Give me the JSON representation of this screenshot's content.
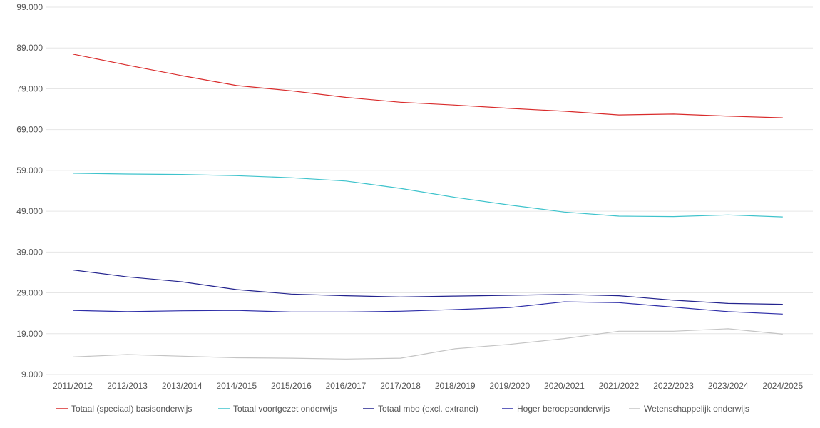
{
  "chart_data": {
    "type": "line",
    "categories": [
      "2011/2012",
      "2012/2013",
      "2013/2014",
      "2014/2015",
      "2015/2016",
      "2016/2017",
      "2017/2018",
      "2018/2019",
      "2019/2020",
      "2020/2021",
      "2021/2022",
      "2022/2023",
      "2023/2024",
      "2024/2025"
    ],
    "y_ticks": [
      9000,
      19000,
      29000,
      39000,
      49000,
      59000,
      69000,
      79000,
      89000,
      99000
    ],
    "y_tick_labels": [
      "9.000",
      "19.000",
      "29.000",
      "39.000",
      "49.000",
      "59.000",
      "69.000",
      "79.000",
      "89.000",
      "99.000"
    ],
    "ylim": [
      9000,
      99000
    ],
    "grid": true,
    "legend_position": "bottom",
    "series": [
      {
        "name": "Totaal (speciaal) basisonderwijs",
        "color": "#d92b2b",
        "values": [
          87500,
          84800,
          82200,
          79800,
          78500,
          76900,
          75700,
          75000,
          74200,
          73500,
          72600,
          72800,
          72300,
          71900
        ]
      },
      {
        "name": "Totaal voortgezet onderwijs",
        "color": "#3ec3cc",
        "values": [
          58300,
          58100,
          58000,
          57700,
          57200,
          56400,
          54600,
          52400,
          50500,
          48800,
          47800,
          47700,
          48100,
          47600
        ]
      },
      {
        "name": "Totaal mbo (excl. extranei)",
        "color": "#23238e",
        "values": [
          34600,
          32900,
          31700,
          29800,
          28700,
          28300,
          28000,
          28200,
          28400,
          28600,
          28300,
          27200,
          26400,
          26200
        ]
      },
      {
        "name": "Hoger beroepsonderwijs",
        "color": "#2e2ea8",
        "values": [
          24700,
          24400,
          24600,
          24700,
          24300,
          24300,
          24500,
          24900,
          25400,
          26800,
          26600,
          25500,
          24400,
          23800
        ]
      },
      {
        "name": "Wetenschappelijk onderwijs",
        "color": "#c4c4c4",
        "values": [
          13300,
          13900,
          13500,
          13100,
          13000,
          12800,
          13000,
          15300,
          16400,
          17800,
          19600,
          19600,
          20200,
          18900
        ]
      }
    ]
  }
}
